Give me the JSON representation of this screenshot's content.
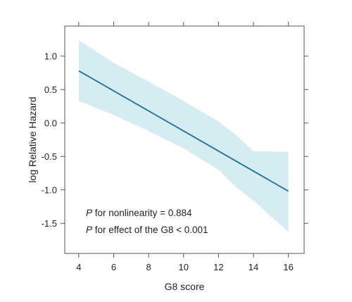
{
  "chart_data": {
    "type": "line",
    "xlabel": "G8 score",
    "ylabel": "log Relative Hazard",
    "xlim": [
      3.2,
      16.9
    ],
    "ylim": [
      -1.95,
      1.45
    ],
    "x_ticks": [
      4,
      6,
      8,
      10,
      12,
      14,
      16
    ],
    "y_ticks": [
      1.0,
      0.5,
      0.0,
      -0.5,
      -1.0,
      -1.5
    ],
    "x_tick_labels": [
      "4",
      "6",
      "8",
      "10",
      "12",
      "14",
      "16"
    ],
    "y_tick_labels": [
      "1.0",
      "0.5",
      "0.0",
      "-0.5",
      "-1.0",
      "-1.5"
    ],
    "grid": false,
    "series": [
      {
        "type": "line",
        "x": [
          4,
          16
        ],
        "y": [
          0.78,
          -1.02
        ],
        "color": "#1a6e9a"
      },
      {
        "type": "band",
        "x": [
          4,
          6,
          8,
          10,
          12,
          13,
          14,
          16
        ],
        "upper": [
          1.24,
          0.9,
          0.62,
          0.33,
          0.02,
          -0.18,
          -0.42,
          -0.43
        ],
        "lower": [
          0.33,
          0.12,
          -0.12,
          -0.38,
          -0.7,
          -0.96,
          -1.16,
          -1.63
        ],
        "color": "#d6ecf3"
      }
    ],
    "annotations": [
      {
        "italic": "P",
        "text": " for nonlinearity = 0.884"
      },
      {
        "italic": "P",
        "text": " for effect of the G8 < 0.001"
      }
    ]
  }
}
